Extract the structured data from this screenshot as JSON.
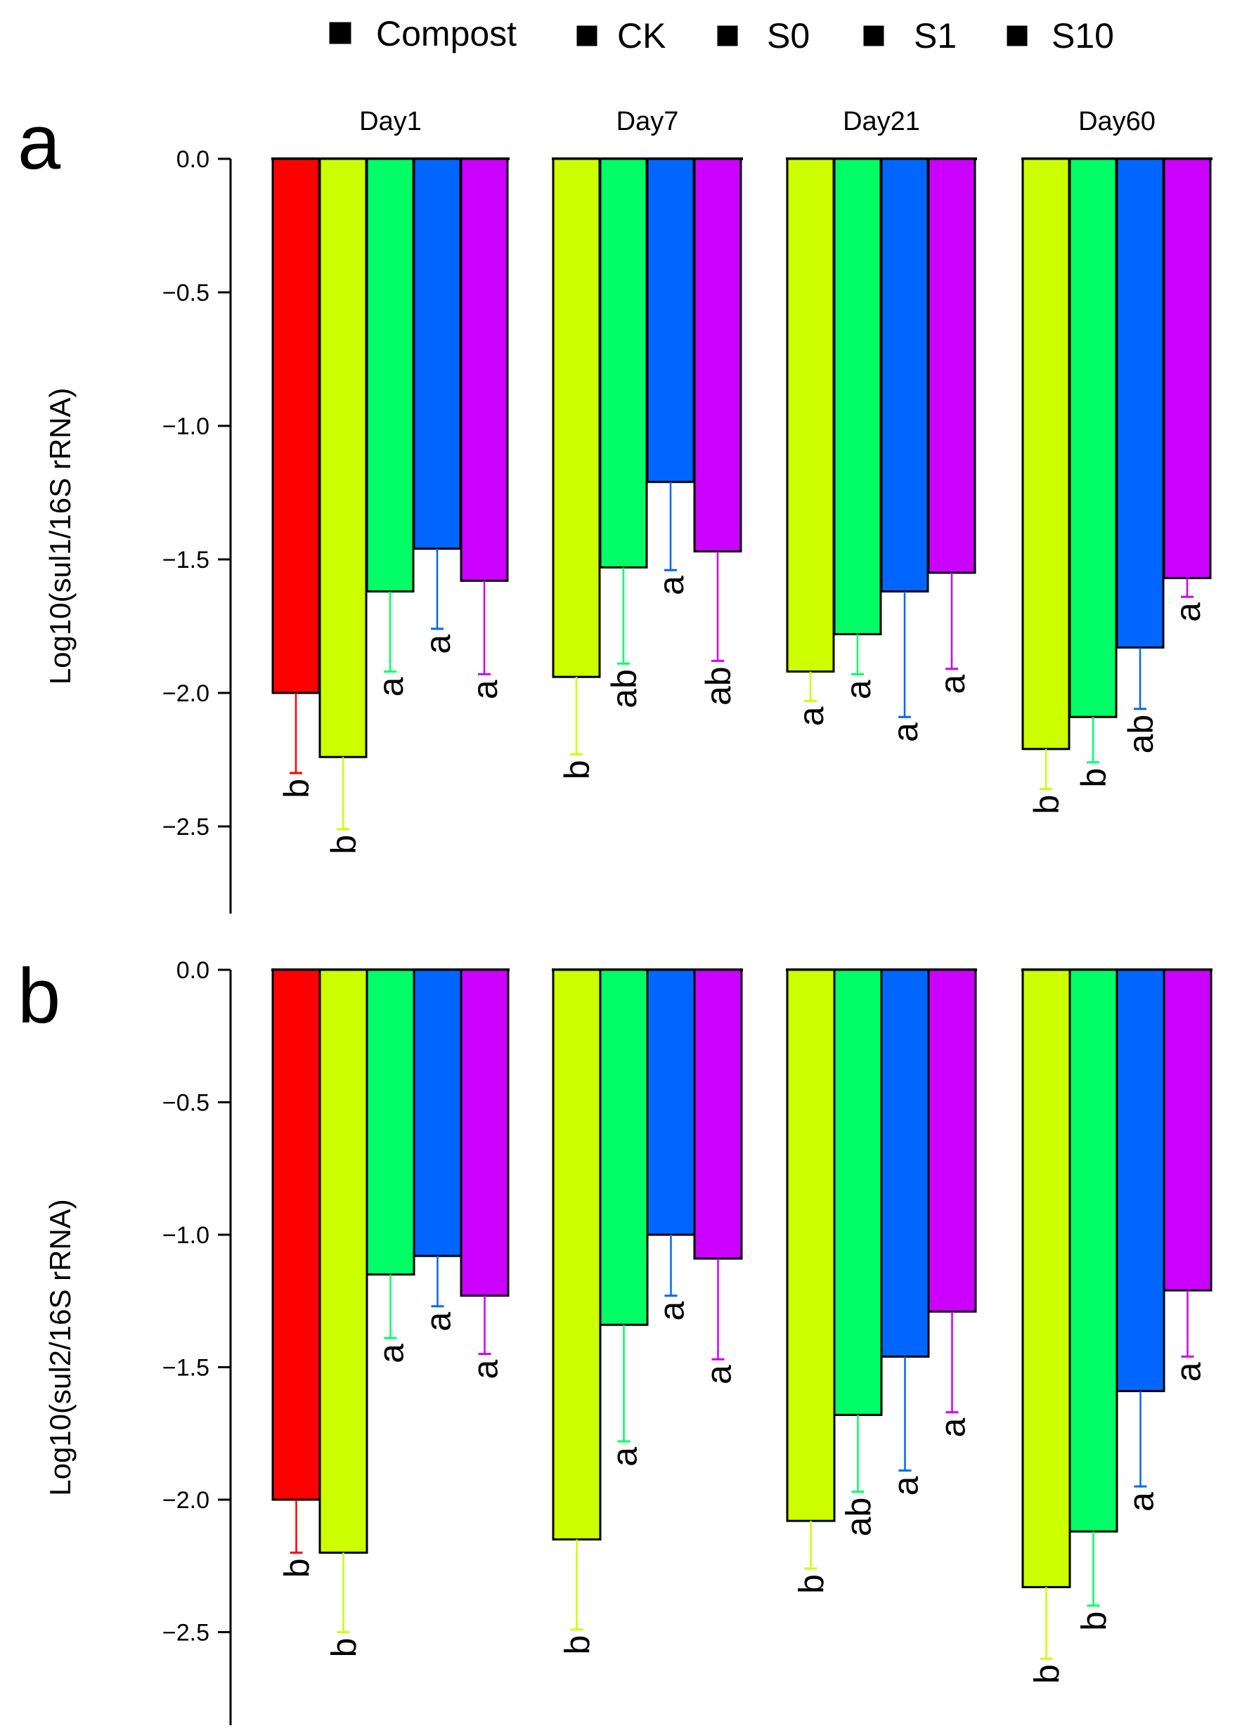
{
  "legend": {
    "items": [
      {
        "label": "Compost",
        "color": "#ff0000"
      },
      {
        "label": "CK",
        "color": "#ccff00"
      },
      {
        "label": "S0",
        "color": "#00ff66"
      },
      {
        "label": "S1",
        "color": "#0066ff"
      },
      {
        "label": "S10",
        "color": "#cc00ff"
      }
    ]
  },
  "chart_data": [
    {
      "type": "bar",
      "panel": "a",
      "ylabel": "Log10(sul1/16S rRNA)",
      "ylim": [
        -2.8,
        0
      ],
      "yticks": [
        0.0,
        -0.5,
        -1.0,
        -1.5,
        -2.0,
        -2.5
      ],
      "ytick_labels": [
        "0.0",
        "−0.5",
        "−1.0",
        "−1.5",
        "−2.0",
        "−2.5"
      ],
      "groups": [
        {
          "label": "Day1",
          "bars": [
            {
              "series": "Compost",
              "value": -2.0,
              "error": 0.3,
              "sig": "b"
            },
            {
              "series": "CK",
              "value": -2.24,
              "error": 0.27,
              "sig": "b"
            },
            {
              "series": "S0",
              "value": -1.62,
              "error": 0.3,
              "sig": "a"
            },
            {
              "series": "S1",
              "value": -1.46,
              "error": 0.3,
              "sig": "a"
            },
            {
              "series": "S10",
              "value": -1.58,
              "error": 0.35,
              "sig": "a"
            }
          ]
        },
        {
          "label": "Day7",
          "bars": [
            {
              "series": "CK",
              "value": -1.94,
              "error": 0.29,
              "sig": "b"
            },
            {
              "series": "S0",
              "value": -1.53,
              "error": 0.36,
              "sig": "ab"
            },
            {
              "series": "S1",
              "value": -1.21,
              "error": 0.33,
              "sig": "a"
            },
            {
              "series": "S10",
              "value": -1.47,
              "error": 0.41,
              "sig": "ab"
            }
          ]
        },
        {
          "label": "Day21",
          "bars": [
            {
              "series": "CK",
              "value": -1.92,
              "error": 0.11,
              "sig": "a"
            },
            {
              "series": "S0",
              "value": -1.78,
              "error": 0.15,
              "sig": "a"
            },
            {
              "series": "S1",
              "value": -1.62,
              "error": 0.47,
              "sig": "a"
            },
            {
              "series": "S10",
              "value": -1.55,
              "error": 0.36,
              "sig": "a"
            }
          ]
        },
        {
          "label": "Day60",
          "bars": [
            {
              "series": "CK",
              "value": -2.21,
              "error": 0.15,
              "sig": "b"
            },
            {
              "series": "S0",
              "value": -2.09,
              "error": 0.17,
              "sig": "b"
            },
            {
              "series": "S1",
              "value": -1.83,
              "error": 0.23,
              "sig": "ab"
            },
            {
              "series": "S10",
              "value": -1.57,
              "error": 0.07,
              "sig": "a"
            }
          ]
        }
      ]
    },
    {
      "type": "bar",
      "panel": "b",
      "ylabel": "Log10(sul2/16S rRNA)",
      "ylim": [
        -2.8,
        0
      ],
      "yticks": [
        0.0,
        -0.5,
        -1.0,
        -1.5,
        -2.0,
        -2.5
      ],
      "ytick_labels": [
        "0.0",
        "−0.5",
        "−1.0",
        "−1.5",
        "−2.0",
        "−2.5"
      ],
      "groups": [
        {
          "label": "",
          "bars": [
            {
              "series": "Compost",
              "value": -2.0,
              "error": 0.2,
              "sig": "b"
            },
            {
              "series": "CK",
              "value": -2.2,
              "error": 0.3,
              "sig": "b"
            },
            {
              "series": "S0",
              "value": -1.15,
              "error": 0.24,
              "sig": "a"
            },
            {
              "series": "S1",
              "value": -1.08,
              "error": 0.19,
              "sig": "a"
            },
            {
              "series": "S10",
              "value": -1.23,
              "error": 0.22,
              "sig": "a"
            }
          ]
        },
        {
          "label": "",
          "bars": [
            {
              "series": "CK",
              "value": -2.15,
              "error": 0.34,
              "sig": "b"
            },
            {
              "series": "S0",
              "value": -1.34,
              "error": 0.44,
              "sig": "a"
            },
            {
              "series": "S1",
              "value": -1.0,
              "error": 0.23,
              "sig": "a"
            },
            {
              "series": "S10",
              "value": -1.09,
              "error": 0.38,
              "sig": "a"
            }
          ]
        },
        {
          "label": "",
          "bars": [
            {
              "series": "CK",
              "value": -2.08,
              "error": 0.18,
              "sig": "b"
            },
            {
              "series": "S0",
              "value": -1.68,
              "error": 0.29,
              "sig": "ab"
            },
            {
              "series": "S1",
              "value": -1.46,
              "error": 0.43,
              "sig": "a"
            },
            {
              "series": "S10",
              "value": -1.29,
              "error": 0.38,
              "sig": "a"
            }
          ]
        },
        {
          "label": "",
          "bars": [
            {
              "series": "CK",
              "value": -2.33,
              "error": 0.27,
              "sig": "b"
            },
            {
              "series": "S0",
              "value": -2.12,
              "error": 0.28,
              "sig": "b"
            },
            {
              "series": "S1",
              "value": -1.59,
              "error": 0.36,
              "sig": "a"
            },
            {
              "series": "S10",
              "value": -1.21,
              "error": 0.25,
              "sig": "a"
            }
          ]
        }
      ]
    }
  ]
}
